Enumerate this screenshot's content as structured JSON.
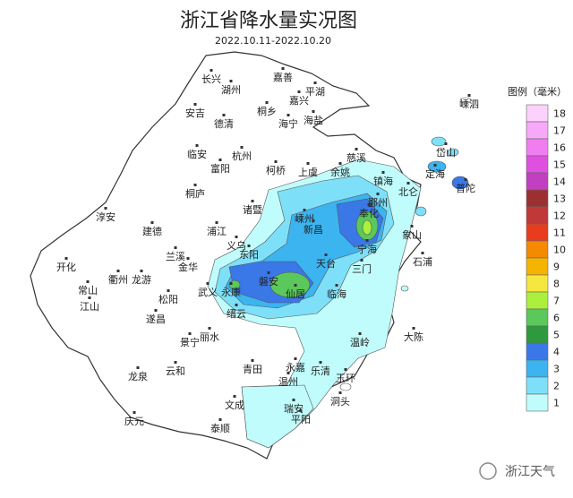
{
  "header": {
    "title": "浙江省降水量实况图",
    "subtitle": "2022.10.11-2022.10.20"
  },
  "legend": {
    "title": "图例（毫米）",
    "items": [
      {
        "value": 18,
        "color": "#fcd2fc"
      },
      {
        "value": 17,
        "color": "#f8a8f8"
      },
      {
        "value": 16,
        "color": "#f07ef0"
      },
      {
        "value": 15,
        "color": "#e050e0"
      },
      {
        "value": 14,
        "color": "#c040c0"
      },
      {
        "value": 13,
        "color": "#9c3030"
      },
      {
        "value": 12,
        "color": "#c03838"
      },
      {
        "value": 11,
        "color": "#e83c1e"
      },
      {
        "value": 10,
        "color": "#f58a00"
      },
      {
        "value": 9,
        "color": "#f5b400"
      },
      {
        "value": 8,
        "color": "#f5e640"
      },
      {
        "value": 7,
        "color": "#aaf03c"
      },
      {
        "value": 6,
        "color": "#5ac85a"
      },
      {
        "value": 5,
        "color": "#2e9a3e"
      },
      {
        "value": 4,
        "color": "#3a78e8"
      },
      {
        "value": 3,
        "color": "#3cb4f0"
      },
      {
        "value": 2,
        "color": "#7ee0f8"
      },
      {
        "value": 1,
        "color": "#c0fcfc"
      }
    ]
  },
  "places": [
    "长兴",
    "湖州",
    "嘉善",
    "平湖",
    "嘉兴",
    "安吉",
    "德清",
    "桐乡",
    "海盐",
    "海宁",
    "嵊泗",
    "岱山",
    "定海",
    "普陀",
    "临安",
    "杭州",
    "富阳",
    "柯桥",
    "上虞",
    "余姚",
    "慈溪",
    "镇海",
    "北仑",
    "鄞州",
    "奉化",
    "宁海",
    "象山",
    "石浦",
    "三门",
    "淳安",
    "桐庐",
    "建德",
    "诸暨",
    "嵊州",
    "新昌",
    "浦江",
    "义乌",
    "东阳",
    "兰溪",
    "金华",
    "龙游",
    "衢州",
    "开化",
    "常山",
    "江山",
    "遂昌",
    "松阳",
    "武义",
    "永康",
    "缙云",
    "磐安",
    "仙居",
    "天台",
    "临海",
    "丽水",
    "青田",
    "永嘉",
    "温州",
    "乐清",
    "玉环",
    "洞头",
    "瑞安",
    "平阳",
    "文成",
    "泰顺",
    "景宁",
    "云和",
    "龙泉",
    "庆元",
    "大陈",
    "温岭"
  ],
  "watermark": "浙江天气"
}
